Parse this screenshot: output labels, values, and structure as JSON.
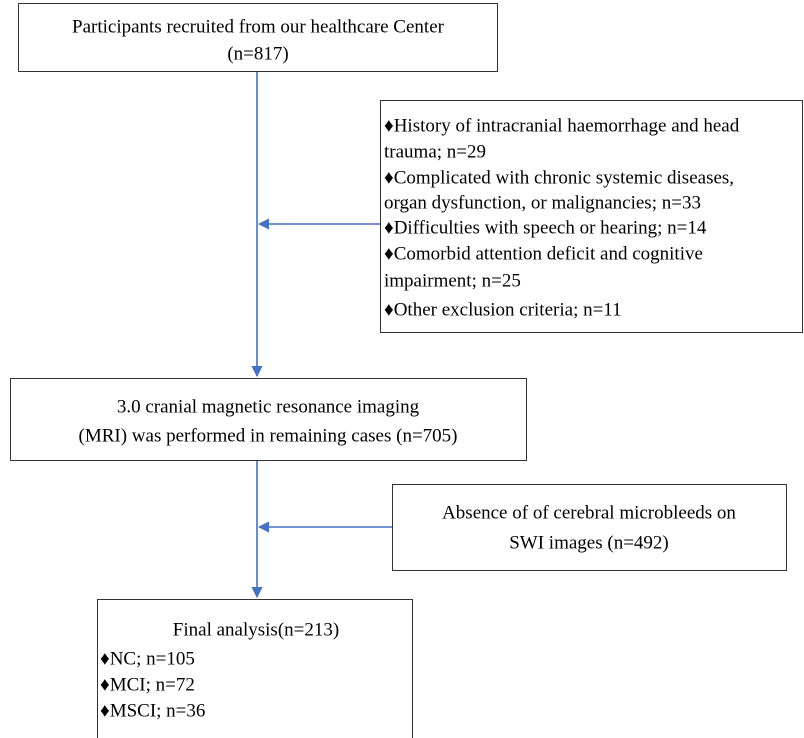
{
  "nodes": [
    {
      "lines": [
        "Participants recruited from our healthcare Center",
        "(n=817)"
      ]
    },
    {
      "lines": [
        "♦History of intracranial haemorrhage and head",
        "trauma; n=29",
        "♦Complicated with chronic systemic diseases,",
        "organ dysfunction, or malignancies; n=33",
        "♦Difficulties with speech or hearing; n=14",
        "♦Comorbid attention deficit and cognitive",
        "impairment; n=25",
        "♦Other exclusion criteria; n=11"
      ]
    },
    {
      "lines": [
        "3.0  cranial magnetic resonance imaging",
        "(MRI) was performed in remaining cases (n=705)"
      ]
    },
    {
      "lines": [
        "Absence of of cerebral microbleeds on",
        "SWI images (n=492)"
      ]
    },
    {
      "lines": [
        "Final analysis(n=213)",
        "♦NC; n=105",
        "♦MCI; n=72",
        "♦MSCI; n=36"
      ]
    }
  ]
}
